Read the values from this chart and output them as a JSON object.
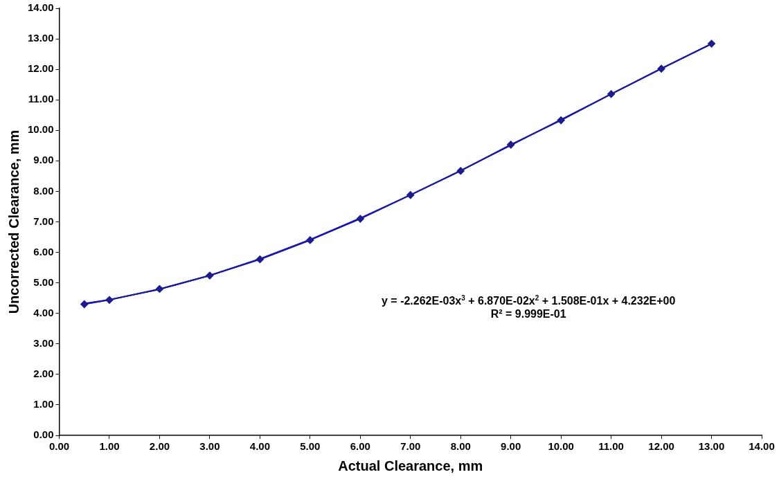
{
  "chart_data": {
    "type": "line",
    "xlabel": "Actual Clearance, mm",
    "ylabel": "Uncorrected Clearance, mm",
    "xlim": [
      0,
      14
    ],
    "ylim": [
      0,
      14
    ],
    "xticks": [
      {
        "value": 0,
        "label": "0.00"
      },
      {
        "value": 1,
        "label": "1.00"
      },
      {
        "value": 2,
        "label": "2.00"
      },
      {
        "value": 3,
        "label": "3.00"
      },
      {
        "value": 4,
        "label": "4.00"
      },
      {
        "value": 5,
        "label": "5.00"
      },
      {
        "value": 6,
        "label": "6.00"
      },
      {
        "value": 7,
        "label": "7.00"
      },
      {
        "value": 8,
        "label": "8.00"
      },
      {
        "value": 9,
        "label": "9.00"
      },
      {
        "value": 10,
        "label": "10.00"
      },
      {
        "value": 11,
        "label": "11.00"
      },
      {
        "value": 12,
        "label": "12.00"
      },
      {
        "value": 13,
        "label": "13.00"
      },
      {
        "value": 14,
        "label": "14.00"
      }
    ],
    "yticks": [
      {
        "value": 0,
        "label": "0.00"
      },
      {
        "value": 1,
        "label": "1.00"
      },
      {
        "value": 2,
        "label": "2.00"
      },
      {
        "value": 3,
        "label": "3.00"
      },
      {
        "value": 4,
        "label": "4.00"
      },
      {
        "value": 5,
        "label": "5.00"
      },
      {
        "value": 6,
        "label": "6.00"
      },
      {
        "value": 7,
        "label": "7.00"
      },
      {
        "value": 8,
        "label": "8.00"
      },
      {
        "value": 9,
        "label": "9.00"
      },
      {
        "value": 10,
        "label": "10.00"
      },
      {
        "value": 11,
        "label": "11.00"
      },
      {
        "value": 12,
        "label": "12.00"
      },
      {
        "value": 13,
        "label": "13.00"
      },
      {
        "value": 14,
        "label": "14.00"
      }
    ],
    "grid": false,
    "legend": false,
    "series": [
      {
        "marker": "diamond",
        "color": "#1c1c8c",
        "x": [
          0.5,
          1,
          2,
          3,
          4,
          5,
          6,
          7,
          8,
          9,
          10,
          11,
          12,
          13
        ],
        "values": [
          4.3,
          4.44,
          4.8,
          5.24,
          5.77,
          6.4,
          7.1,
          7.88,
          8.67,
          9.53,
          10.33,
          11.19,
          12.02,
          12.84
        ]
      },
      {
        "marker": "none",
        "color": "#0000ff",
        "x": [
          0.5,
          1,
          2,
          3,
          4,
          5,
          6,
          7,
          8,
          9,
          10,
          11,
          12,
          13
        ],
        "values": [
          4.32,
          4.45,
          4.79,
          5.24,
          5.79,
          6.42,
          7.12,
          7.88,
          8.68,
          9.51,
          10.35,
          11.19,
          12.03,
          12.83
        ]
      }
    ],
    "annotations": [
      "y = -2.262E-03x$^{3}$ + 6.870E-02x$^{2}$ + 1.508E-01x + 4.232E+00\nR² = 9.999E-01"
    ]
  }
}
